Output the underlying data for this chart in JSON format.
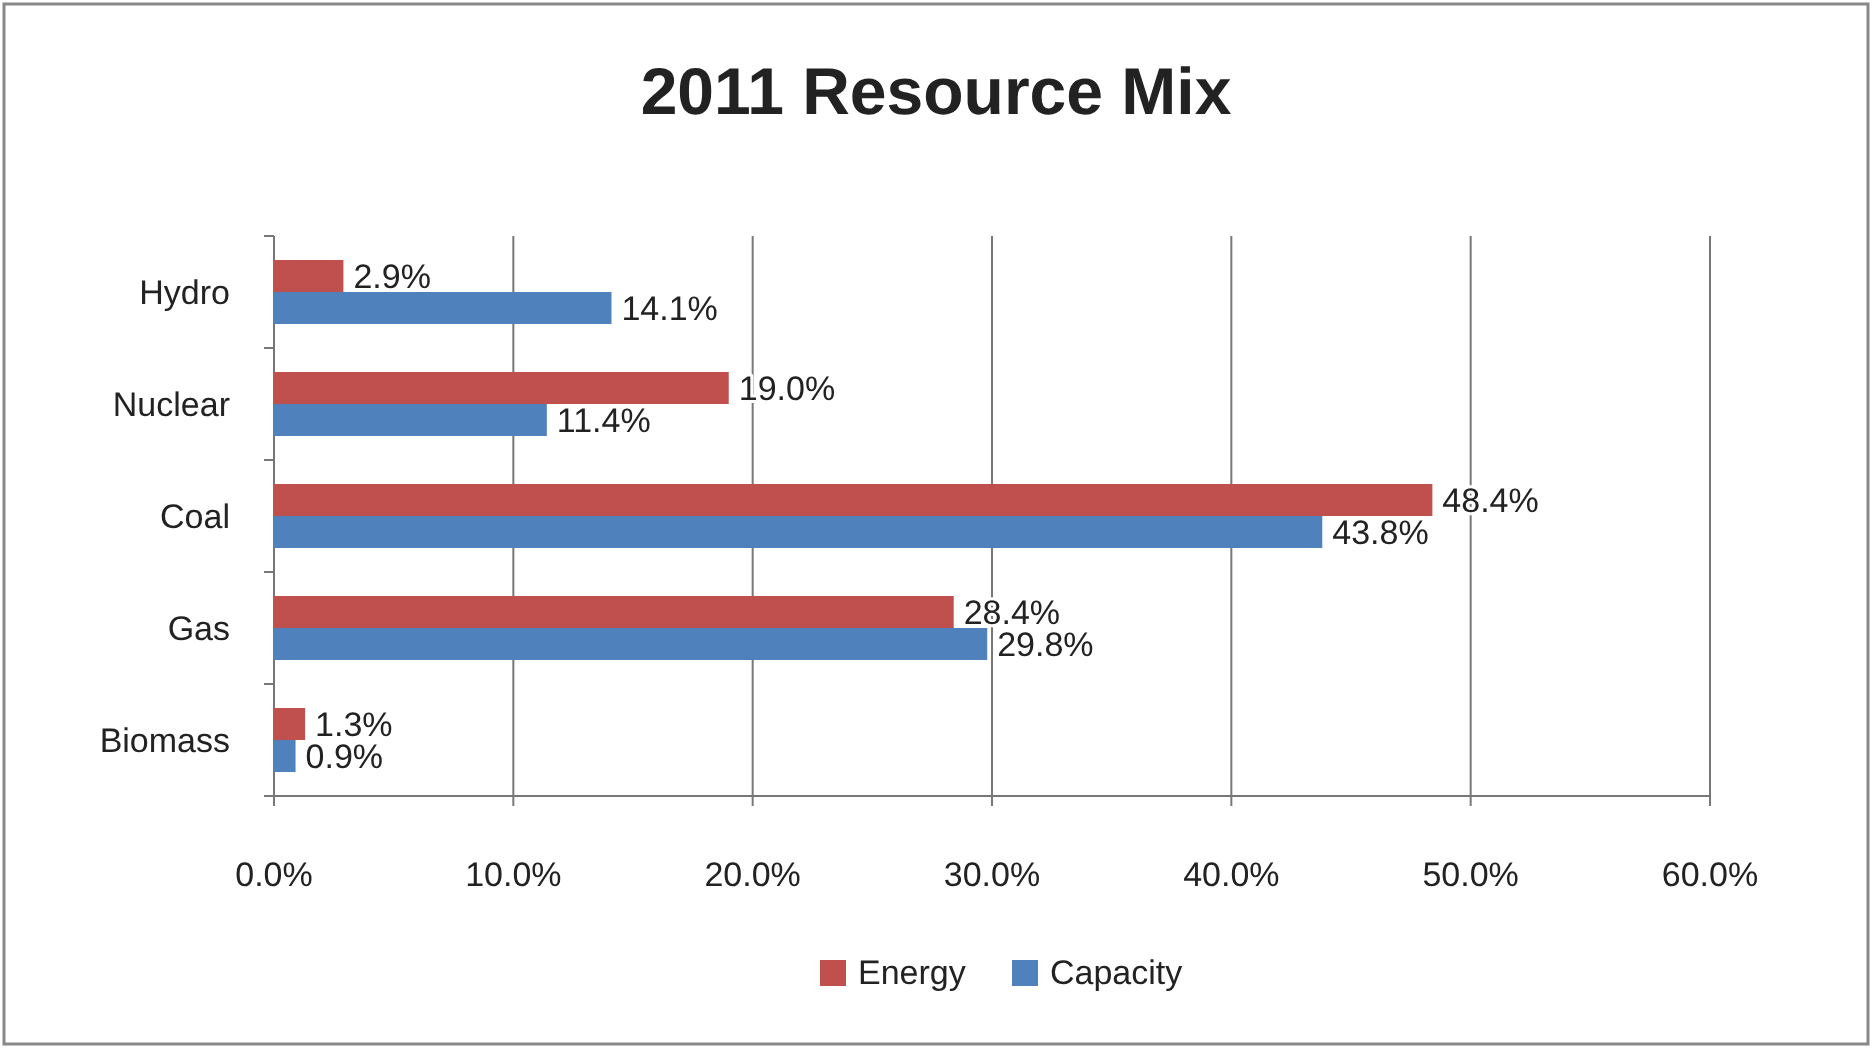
{
  "chart_data": {
    "type": "bar",
    "orientation": "horizontal",
    "title": "2011 Resource Mix",
    "categories": [
      "Hydro",
      "Nuclear",
      "Coal",
      "Gas",
      "Biomass"
    ],
    "series": [
      {
        "name": "Energy",
        "color": "#c0504d",
        "values": [
          2.9,
          19.0,
          48.4,
          28.4,
          1.3
        ],
        "value_labels": [
          "2.9%",
          "19.0%",
          "48.4%",
          "28.4%",
          "1.3%"
        ]
      },
      {
        "name": "Capacity",
        "color": "#4f81bd",
        "values": [
          14.1,
          11.4,
          43.8,
          29.8,
          0.9
        ],
        "value_labels": [
          "14.1%",
          "11.4%",
          "43.8%",
          "29.8%",
          "0.9%"
        ]
      }
    ],
    "xlim": [
      0,
      60
    ],
    "xticks": [
      {
        "value": 0,
        "label": "0.0%"
      },
      {
        "value": 10,
        "label": "10.0%"
      },
      {
        "value": 20,
        "label": "20.0%"
      },
      {
        "value": 30,
        "label": "30.0%"
      },
      {
        "value": 40,
        "label": "40.0%"
      },
      {
        "value": 50,
        "label": "50.0%"
      },
      {
        "value": 60,
        "label": "60.0%"
      }
    ],
    "grid": "x",
    "legend": "bottom"
  }
}
